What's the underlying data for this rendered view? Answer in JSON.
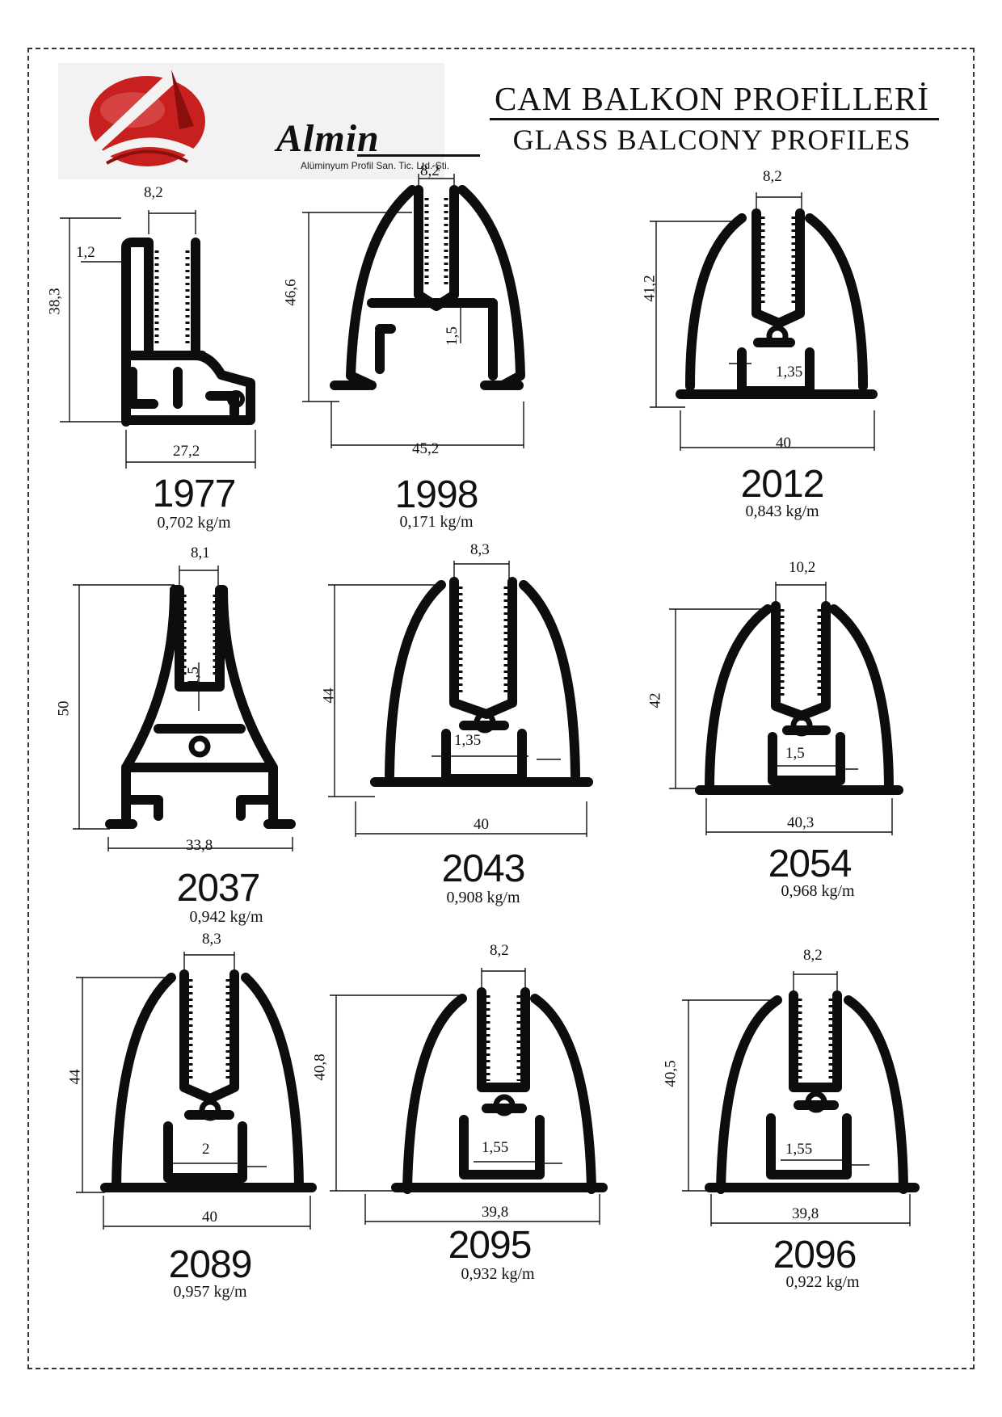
{
  "header": {
    "title_tr": "CAM BALKON PROFİLLERİ",
    "title_en": "GLASS BALCONY PROFILES"
  },
  "logo": {
    "wordmark": "Almin",
    "company": "Alüminyum Profil San. Tic. Ltd. Şti."
  },
  "colors": {
    "logo_red": "#c8201e",
    "logo_dark_red": "#8a0f0f",
    "ink": "#0d0d0d"
  },
  "profiles": [
    {
      "code": "1977",
      "weight": "0,702 kg/m",
      "width": "27,2",
      "height": "38,3",
      "slot": "8,2",
      "wall": "1,2"
    },
    {
      "code": "1998",
      "weight": "0,171 kg/m",
      "width": "45,2",
      "height": "46,6",
      "slot": "8,2",
      "wall": "1,5"
    },
    {
      "code": "2012",
      "weight": "0,843 kg/m",
      "width": "40",
      "height": "41,2",
      "slot": "8,2",
      "wall": "1,35"
    },
    {
      "code": "2037",
      "weight": "0,942 kg/m",
      "width": "33,8",
      "height": "50",
      "slot": "8,1",
      "wall": "1,5"
    },
    {
      "code": "2043",
      "weight": "0,908 kg/m",
      "width": "40",
      "height": "44",
      "slot": "8,3",
      "wall": "1,35"
    },
    {
      "code": "2054",
      "weight": "0,968 kg/m",
      "width": "40,3",
      "height": "42",
      "slot": "10,2",
      "wall": "1,5"
    },
    {
      "code": "2089",
      "weight": "0,957 kg/m",
      "width": "40",
      "height": "44",
      "slot": "8,3",
      "wall": "2"
    },
    {
      "code": "2095",
      "weight": "0,932 kg/m",
      "width": "39,8",
      "height": "40,8",
      "slot": "8,2",
      "wall": "1,55"
    },
    {
      "code": "2096",
      "weight": "0,922 kg/m",
      "width": "39,8",
      "height": "40,5",
      "slot": "8,2",
      "wall": "1,55"
    }
  ]
}
